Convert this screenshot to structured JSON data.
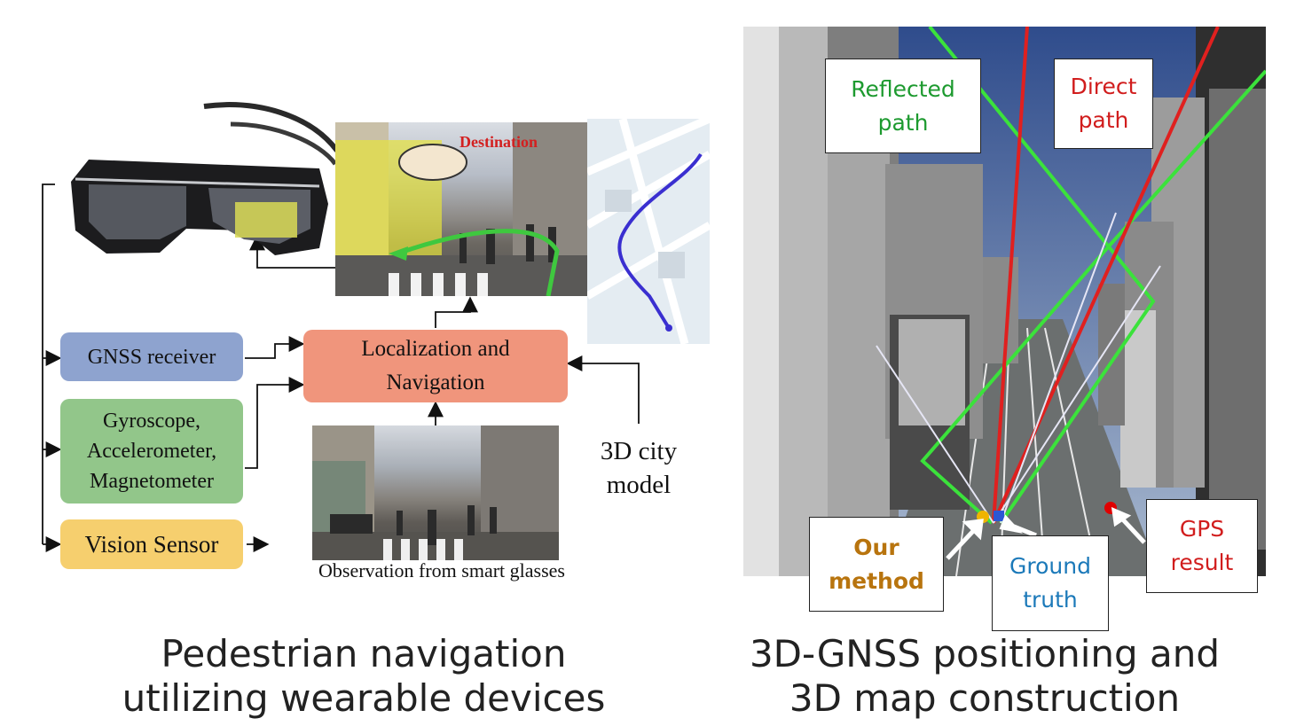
{
  "left_panel": {
    "boxes": {
      "gnss": "GNSS receiver",
      "imu_line1": "Gyroscope,",
      "imu_line2": "Accelerometer,",
      "imu_line3": "Magnetometer",
      "vision": "Vision Sensor",
      "localization_line1": "Localization and",
      "localization_line2": "Navigation"
    },
    "city_model_line1": "3D city",
    "city_model_line2": "model",
    "observation_caption": "Observation from smart glasses",
    "destination_label": "Destination",
    "colors": {
      "gnss": "#8ea3cf",
      "imu": "#92c68a",
      "vision": "#f6cf6e",
      "localization": "#f0957c",
      "route": "#3fc83f",
      "map_route": "#3a2fd0"
    }
  },
  "right_panel": {
    "callouts": {
      "reflected_line1": "Reflected",
      "reflected_line2": "path",
      "direct_line1": "Direct",
      "direct_line2": "path",
      "our_line1": "Our",
      "our_line2": "method",
      "ground_line1": "Ground",
      "ground_line2": "truth",
      "gps_line1": "GPS",
      "gps_line2": "result"
    },
    "colors": {
      "reflected": "#1d9a2f",
      "direct": "#d11d1d",
      "our": "#b8740e",
      "ground": "#1b79b9",
      "gps": "#d11d1d"
    }
  },
  "captions": {
    "left_line1": "Pedestrian navigation",
    "left_line2": "utilizing wearable devices",
    "right_line1": "3D-GNSS positioning and",
    "right_line2": "3D map construction"
  }
}
